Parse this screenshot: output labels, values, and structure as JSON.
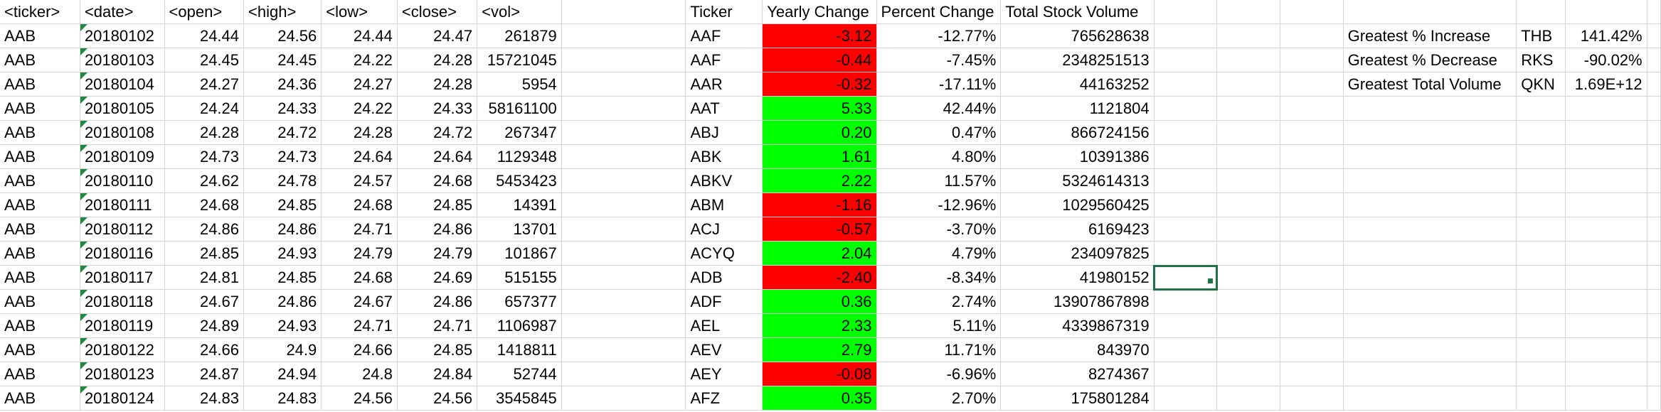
{
  "headers": [
    "<ticker>",
    "<date>",
    "<open>",
    "<high>",
    "<low>",
    "<close>",
    "<vol>",
    "",
    "Ticker",
    "Yearly Change",
    "Percent Change",
    "Total Stock Volume",
    "",
    "",
    "",
    "",
    "",
    "",
    ""
  ],
  "raw_rows": [
    [
      "AAB",
      "20180102",
      "24.44",
      "24.56",
      "24.44",
      "24.47",
      "261879"
    ],
    [
      "AAB",
      "20180103",
      "24.45",
      "24.45",
      "24.22",
      "24.28",
      "15721045"
    ],
    [
      "AAB",
      "20180104",
      "24.27",
      "24.36",
      "24.27",
      "24.28",
      "5954"
    ],
    [
      "AAB",
      "20180105",
      "24.24",
      "24.33",
      "24.22",
      "24.33",
      "58161100"
    ],
    [
      "AAB",
      "20180108",
      "24.28",
      "24.72",
      "24.28",
      "24.72",
      "267347"
    ],
    [
      "AAB",
      "20180109",
      "24.73",
      "24.73",
      "24.64",
      "24.64",
      "1129348"
    ],
    [
      "AAB",
      "20180110",
      "24.62",
      "24.78",
      "24.57",
      "24.68",
      "5453423"
    ],
    [
      "AAB",
      "20180111",
      "24.68",
      "24.85",
      "24.68",
      "24.85",
      "14391"
    ],
    [
      "AAB",
      "20180112",
      "24.86",
      "24.86",
      "24.71",
      "24.86",
      "13701"
    ],
    [
      "AAB",
      "20180116",
      "24.85",
      "24.93",
      "24.79",
      "24.79",
      "101867"
    ],
    [
      "AAB",
      "20180117",
      "24.81",
      "24.85",
      "24.68",
      "24.69",
      "515155"
    ],
    [
      "AAB",
      "20180118",
      "24.67",
      "24.86",
      "24.67",
      "24.86",
      "657377"
    ],
    [
      "AAB",
      "20180119",
      "24.89",
      "24.93",
      "24.71",
      "24.71",
      "1106987"
    ],
    [
      "AAB",
      "20180122",
      "24.66",
      "24.9",
      "24.66",
      "24.85",
      "1418811"
    ],
    [
      "AAB",
      "20180123",
      "24.87",
      "24.94",
      "24.8",
      "24.84",
      "52744"
    ],
    [
      "AAB",
      "20180124",
      "24.83",
      "24.83",
      "24.56",
      "24.56",
      "3545845"
    ]
  ],
  "summary_rows": [
    {
      "ticker": "AAF",
      "change": "-3.12",
      "percent": "-12.77%",
      "volume": "765628638",
      "status": "neg"
    },
    {
      "ticker": "AAF",
      "change": "-0.44",
      "percent": "-7.45%",
      "volume": "2348251513",
      "status": "neg"
    },
    {
      "ticker": "AAR",
      "change": "-0.32",
      "percent": "-17.11%",
      "volume": "44163252",
      "status": "neg"
    },
    {
      "ticker": "AAT",
      "change": "5.33",
      "percent": "42.44%",
      "volume": "1121804",
      "status": "pos"
    },
    {
      "ticker": "ABJ",
      "change": "0.20",
      "percent": "0.47%",
      "volume": "866724156",
      "status": "pos"
    },
    {
      "ticker": "ABK",
      "change": "1.61",
      "percent": "4.80%",
      "volume": "10391386",
      "status": "pos"
    },
    {
      "ticker": "ABKV",
      "change": "2.22",
      "percent": "11.57%",
      "volume": "5324614313",
      "status": "pos"
    },
    {
      "ticker": "ABM",
      "change": "-1.16",
      "percent": "-12.96%",
      "volume": "1029560425",
      "status": "neg"
    },
    {
      "ticker": "ACJ",
      "change": "-0.57",
      "percent": "-3.70%",
      "volume": "6169423",
      "status": "neg"
    },
    {
      "ticker": "ACYQ",
      "change": "2.04",
      "percent": "4.79%",
      "volume": "234097825",
      "status": "pos"
    },
    {
      "ticker": "ADB",
      "change": "-2.40",
      "percent": "-8.34%",
      "volume": "41980152",
      "status": "neg"
    },
    {
      "ticker": "ADF",
      "change": "0.36",
      "percent": "2.74%",
      "volume": "13907867898",
      "status": "pos"
    },
    {
      "ticker": "AEL",
      "change": "2.33",
      "percent": "5.11%",
      "volume": "4339867319",
      "status": "pos"
    },
    {
      "ticker": "AEV",
      "change": "2.79",
      "percent": "11.71%",
      "volume": "843970",
      "status": "pos"
    },
    {
      "ticker": "AEY",
      "change": "-0.08",
      "percent": "-6.96%",
      "volume": "8274367",
      "status": "neg"
    },
    {
      "ticker": "AFZ",
      "change": "0.35",
      "percent": "2.70%",
      "volume": "175801284",
      "status": "pos"
    }
  ],
  "greatest": [
    {
      "label": "Greatest % Increase",
      "ticker": "THB",
      "value": "141.42%"
    },
    {
      "label": "Greatest % Decrease",
      "ticker": "RKS",
      "value": "-90.02%"
    },
    {
      "label": "Greatest Total Volume",
      "ticker": "QKN",
      "value": "1.69E+12"
    }
  ],
  "colors": {
    "positive_fill": "#00ff00",
    "negative_fill": "#ff0000",
    "selection_border": "#217346",
    "gridline": "#d4d4d4"
  }
}
